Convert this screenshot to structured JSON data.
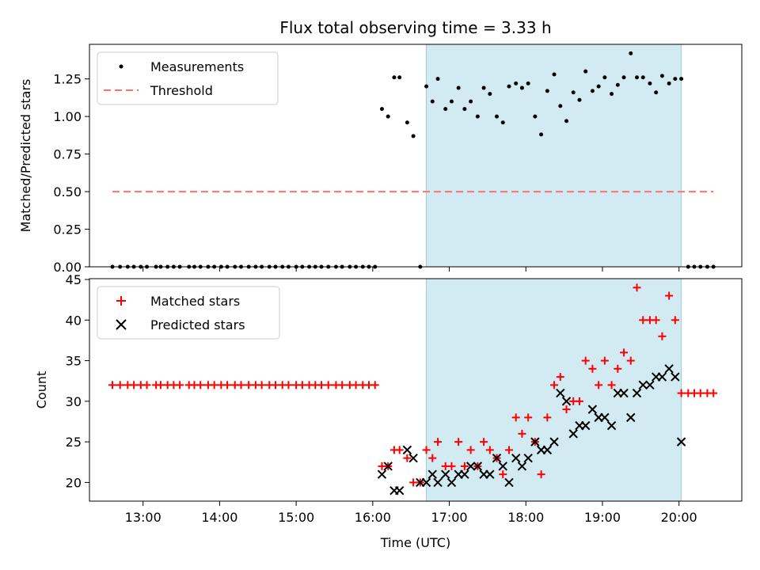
{
  "title": "Flux total observing time = 3.33 h",
  "colors": {
    "span": "#add8e6",
    "measurement": "#000000",
    "threshold": "#ff7070",
    "matched": "#ff0000",
    "predicted": "#000000"
  },
  "chart_data": [
    {
      "type": "scatter",
      "ylabel": "Matched/Predicted stars",
      "ylim": [
        0,
        1.48
      ],
      "xlim": [
        12.3,
        20.82
      ],
      "yticks": [
        0.0,
        0.25,
        0.5,
        0.75,
        1.0,
        1.25
      ],
      "ytick_labels": [
        "0.00",
        "0.25",
        "0.50",
        "0.75",
        "1.00",
        "1.25"
      ],
      "xticks": [
        13,
        14,
        15,
        16,
        17,
        18,
        19,
        20
      ],
      "shaded_span": [
        16.7,
        20.03
      ],
      "legend": {
        "placement": "top-left",
        "entries": [
          "Measurements",
          "Threshold"
        ]
      },
      "threshold": {
        "name": "Threshold",
        "y": 0.5,
        "x_range": [
          12.6,
          20.45
        ]
      },
      "series": [
        {
          "name": "Measurements",
          "x": [
            12.6,
            12.7,
            12.8,
            12.88,
            12.97,
            13.05,
            13.17,
            13.23,
            13.32,
            13.4,
            13.48,
            13.6,
            13.67,
            13.75,
            13.85,
            13.93,
            14.02,
            14.1,
            14.2,
            14.28,
            14.38,
            14.47,
            14.55,
            14.65,
            14.73,
            14.82,
            14.9,
            15.0,
            15.08,
            15.17,
            15.25,
            15.33,
            15.42,
            15.52,
            15.6,
            15.7,
            15.78,
            15.87,
            15.95,
            16.03,
            16.12,
            16.2,
            16.28,
            16.35,
            16.45,
            16.53,
            16.62,
            16.7,
            16.78,
            16.85,
            16.95,
            17.03,
            17.12,
            17.2,
            17.28,
            17.37,
            17.45,
            17.53,
            17.62,
            17.7,
            17.78,
            17.87,
            17.95,
            18.03,
            18.12,
            18.2,
            18.28,
            18.37,
            18.45,
            18.53,
            18.62,
            18.7,
            18.78,
            18.87,
            18.95,
            19.03,
            19.12,
            19.2,
            19.28,
            19.37,
            19.45,
            19.53,
            19.62,
            19.7,
            19.78,
            19.87,
            19.95,
            20.03,
            20.12,
            20.2,
            20.28,
            20.37,
            20.45
          ],
          "y": [
            0,
            0,
            0,
            0,
            0,
            0,
            0,
            0,
            0,
            0,
            0,
            0,
            0,
            0,
            0,
            0,
            0,
            0,
            0,
            0,
            0,
            0,
            0,
            0,
            0,
            0,
            0,
            0,
            0,
            0,
            0,
            0,
            0,
            0,
            0,
            0,
            0,
            0,
            0,
            0,
            1.05,
            1.0,
            1.26,
            1.26,
            0.96,
            0.87,
            0.0,
            1.2,
            1.1,
            1.25,
            1.05,
            1.1,
            1.19,
            1.05,
            1.1,
            1.0,
            1.19,
            1.15,
            1.0,
            0.96,
            1.2,
            1.22,
            1.19,
            1.22,
            1.0,
            0.88,
            1.17,
            1.28,
            1.07,
            0.97,
            1.16,
            1.11,
            1.3,
            1.17,
            1.2,
            1.26,
            1.15,
            1.21,
            1.26,
            1.42,
            1.26,
            1.26,
            1.22,
            1.16,
            1.27,
            1.22,
            1.25,
            1.25,
            0,
            0,
            0,
            0,
            0
          ]
        }
      ]
    },
    {
      "type": "scatter",
      "xlabel": "Time (UTC)",
      "ylabel": "Count",
      "ylim": [
        17.7,
        45.1
      ],
      "xlim": [
        12.3,
        20.82
      ],
      "yticks": [
        20,
        25,
        30,
        35,
        40,
        45
      ],
      "xticks": [
        13,
        14,
        15,
        16,
        17,
        18,
        19,
        20
      ],
      "xtick_labels": [
        "13:00",
        "14:00",
        "15:00",
        "16:00",
        "17:00",
        "18:00",
        "19:00",
        "20:00"
      ],
      "shaded_span": [
        16.7,
        20.03
      ],
      "legend": {
        "placement": "top-left",
        "entries": [
          "Matched stars",
          "Predicted stars"
        ]
      },
      "series": [
        {
          "name": "Matched stars",
          "marker": "plus",
          "x": [
            12.6,
            12.7,
            12.8,
            12.88,
            12.97,
            13.05,
            13.17,
            13.23,
            13.32,
            13.4,
            13.48,
            13.6,
            13.67,
            13.75,
            13.85,
            13.93,
            14.02,
            14.1,
            14.2,
            14.28,
            14.38,
            14.47,
            14.55,
            14.65,
            14.73,
            14.82,
            14.9,
            15.0,
            15.08,
            15.17,
            15.25,
            15.33,
            15.42,
            15.52,
            15.6,
            15.7,
            15.78,
            15.87,
            15.95,
            16.03,
            16.12,
            16.2,
            16.28,
            16.35,
            16.45,
            16.53,
            16.62,
            16.7,
            16.78,
            16.85,
            16.95,
            17.03,
            17.12,
            17.2,
            17.28,
            17.37,
            17.45,
            17.53,
            17.62,
            17.7,
            17.78,
            17.87,
            17.95,
            18.03,
            18.12,
            18.2,
            18.28,
            18.37,
            18.45,
            18.53,
            18.62,
            18.7,
            18.78,
            18.87,
            18.95,
            19.03,
            19.12,
            19.2,
            19.28,
            19.37,
            19.45,
            19.53,
            19.62,
            19.7,
            19.78,
            19.87,
            19.95,
            20.03,
            20.12,
            20.2,
            20.28,
            20.37,
            20.45
          ],
          "y": [
            32,
            32,
            32,
            32,
            32,
            32,
            32,
            32,
            32,
            32,
            32,
            32,
            32,
            32,
            32,
            32,
            32,
            32,
            32,
            32,
            32,
            32,
            32,
            32,
            32,
            32,
            32,
            32,
            32,
            32,
            32,
            32,
            32,
            32,
            32,
            32,
            32,
            32,
            32,
            32,
            22,
            22,
            24,
            24,
            23,
            20,
            20,
            24,
            23,
            25,
            22,
            22,
            25,
            22,
            24,
            22,
            25,
            24,
            23,
            21,
            24,
            28,
            26,
            28,
            25,
            21,
            28,
            32,
            33,
            29,
            30,
            30,
            35,
            34,
            32,
            35,
            32,
            34,
            36,
            35,
            44,
            40,
            40,
            40,
            38,
            43,
            40,
            31,
            31,
            31,
            31,
            31,
            31
          ]
        },
        {
          "name": "Predicted stars",
          "marker": "x",
          "x": [
            16.12,
            16.2,
            16.28,
            16.35,
            16.45,
            16.53,
            16.62,
            16.7,
            16.78,
            16.85,
            16.95,
            17.03,
            17.12,
            17.2,
            17.28,
            17.37,
            17.45,
            17.53,
            17.62,
            17.7,
            17.78,
            17.87,
            17.95,
            18.03,
            18.12,
            18.2,
            18.28,
            18.37,
            18.45,
            18.53,
            18.62,
            18.7,
            18.78,
            18.87,
            18.95,
            19.03,
            19.12,
            19.2,
            19.28,
            19.37,
            19.45,
            19.53,
            19.62,
            19.7,
            19.78,
            19.87,
            19.95,
            20.03
          ],
          "y": [
            21,
            22,
            19,
            19,
            24,
            23,
            20,
            20,
            21,
            20,
            21,
            20,
            21,
            21,
            22,
            22,
            21,
            21,
            23,
            22,
            20,
            23,
            22,
            23,
            25,
            24,
            24,
            25,
            31,
            30,
            26,
            27,
            27,
            29,
            28,
            28,
            27,
            31,
            31,
            28,
            31,
            32,
            32,
            33,
            33,
            34,
            33,
            25
          ]
        }
      ]
    }
  ]
}
